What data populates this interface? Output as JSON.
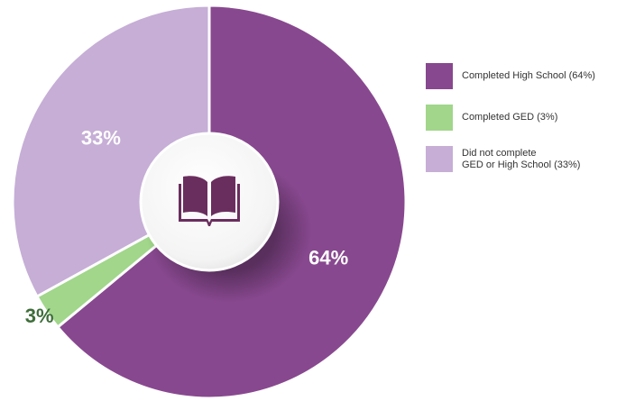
{
  "chart_data": {
    "type": "pie",
    "slices": [
      {
        "label": "Completed High School (64%)",
        "value": 64,
        "data_label": "64%",
        "color": "#88488F",
        "label_color": "#ffffff"
      },
      {
        "label": "Completed GED (3%)",
        "value": 3,
        "data_label": "3%",
        "color": "#A1D68B",
        "label_color": "#3E6E3A"
      },
      {
        "label": "Did not complete\nGED or High School (33%)",
        "value": 33,
        "data_label": "33%",
        "color": "#C6AED6",
        "label_color": "#ffffff"
      }
    ],
    "legend_position": "right",
    "center_icon": "open-book-icon",
    "center_icon_color": "#6A2E5E"
  }
}
